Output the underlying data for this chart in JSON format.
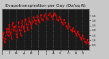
{
  "title": "Evapotranspiration per Day (Oz/sq ft)",
  "title_fontsize": 4.5,
  "line_color": "#ff0000",
  "bg_color": "#c8c8c8",
  "plot_bg_color": "#1a1a1a",
  "grid_color": "#888888",
  "y_values": [
    0.5,
    1.8,
    0.8,
    1.2,
    2.2,
    1.5,
    2.6,
    1.8,
    1.2,
    2.8,
    2.0,
    2.5,
    1.6,
    1.3,
    2.9,
    2.0,
    1.5,
    3.0,
    2.4,
    1.9,
    3.2,
    2.6,
    2.1,
    3.3,
    2.8,
    2.3,
    2.9,
    3.4,
    3.0,
    2.7,
    3.5,
    3.1,
    2.8,
    3.6,
    3.2,
    3.0,
    3.5,
    3.7,
    3.3,
    3.1,
    3.6,
    3.8,
    3.5,
    3.2,
    3.6,
    3.8,
    3.5,
    3.2,
    3.0,
    3.4,
    3.2,
    2.9,
    2.6,
    3.1,
    2.8,
    2.5,
    2.2,
    2.7,
    2.4,
    2.1,
    1.9,
    2.3,
    2.0,
    1.7,
    1.5,
    1.9,
    1.6,
    1.3,
    1.1,
    1.5,
    1.2,
    0.9,
    0.7,
    1.1,
    0.8,
    0.5
  ],
  "ylim": [
    0.0,
    4.2
  ],
  "yticks": [
    0.5,
    1.0,
    1.5,
    2.0,
    2.5,
    3.0,
    3.5
  ],
  "ytick_labels": [
    "0.5",
    "1.0",
    "1.5",
    "2.0",
    "2.5",
    "3.0",
    "3.5"
  ],
  "num_xticks": 12,
  "xtick_labels": [
    "J",
    "F",
    "M",
    "A",
    "M",
    "J",
    "J",
    "A",
    "S",
    "O",
    "N",
    "D"
  ],
  "markersize": 1.2,
  "linewidth": 0.7,
  "linestyle": "--",
  "title_color": "#000000",
  "tick_color": "#000000",
  "spine_color": "#888888"
}
